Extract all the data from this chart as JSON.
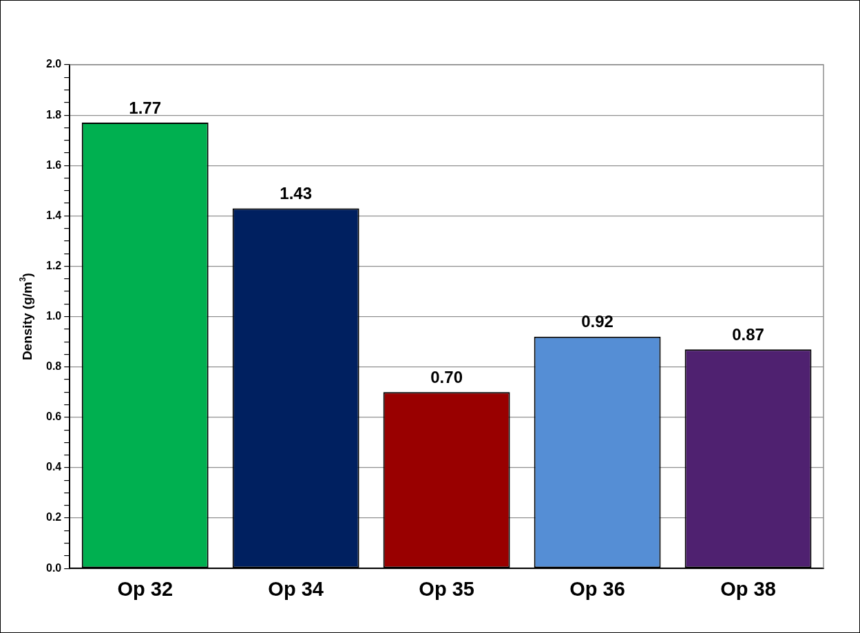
{
  "chart_data": {
    "type": "bar",
    "ylabel": "Density (g/m$^{3}$)",
    "categories": [
      "Op 32",
      "Op 34",
      "Op 35",
      "Op 36",
      "Op 38"
    ],
    "values": [
      1.77,
      1.43,
      0.7,
      0.92,
      0.87
    ],
    "colors": [
      "#00b050",
      "#002060",
      "#990000",
      "#558ed5",
      "#4f2170"
    ],
    "value_labels": [
      "1.77",
      "1.43",
      "0.70",
      "0.92",
      "0.87"
    ],
    "ylim": [
      0,
      2
    ],
    "yticks": [
      {
        "value": 0,
        "label": "0.0"
      },
      {
        "value": 0.05,
        "label": null
      },
      {
        "value": 0.1,
        "label": null
      },
      {
        "value": 0.15,
        "label": null
      },
      {
        "value": 0.2,
        "label": "0.2"
      },
      {
        "value": 0.25,
        "label": null
      },
      {
        "value": 0.3,
        "label": null
      },
      {
        "value": 0.35,
        "label": null
      },
      {
        "value": 0.4,
        "label": "0.4"
      },
      {
        "value": 0.45,
        "label": null
      },
      {
        "value": 0.5,
        "label": null
      },
      {
        "value": 0.55,
        "label": null
      },
      {
        "value": 0.6,
        "label": "0.6"
      },
      {
        "value": 0.65,
        "label": null
      },
      {
        "value": 0.7,
        "label": null
      },
      {
        "value": 0.75,
        "label": null
      },
      {
        "value": 0.8,
        "label": "0.8"
      },
      {
        "value": 0.85,
        "label": null
      },
      {
        "value": 0.9,
        "label": null
      },
      {
        "value": 0.95,
        "label": null
      },
      {
        "value": 1,
        "label": "1.0"
      },
      {
        "value": 1.05,
        "label": null
      },
      {
        "value": 1.1,
        "label": null
      },
      {
        "value": 1.15,
        "label": null
      },
      {
        "value": 1.2,
        "label": "1.2"
      },
      {
        "value": 1.25,
        "label": null
      },
      {
        "value": 1.3,
        "label": null
      },
      {
        "value": 1.35,
        "label": null
      },
      {
        "value": 1.4,
        "label": "1.4"
      },
      {
        "value": 1.45,
        "label": null
      },
      {
        "value": 1.5,
        "label": null
      },
      {
        "value": 1.55,
        "label": null
      },
      {
        "value": 1.6,
        "label": "1.6"
      },
      {
        "value": 1.65,
        "label": null
      },
      {
        "value": 1.7,
        "label": null
      },
      {
        "value": 1.75,
        "label": null
      },
      {
        "value": 1.8,
        "label": "1.8"
      },
      {
        "value": 1.85,
        "label": null
      },
      {
        "value": 1.9,
        "label": null
      },
      {
        "value": 1.95,
        "label": null
      },
      {
        "value": 2,
        "label": "2.0"
      }
    ],
    "grid": "y"
  }
}
